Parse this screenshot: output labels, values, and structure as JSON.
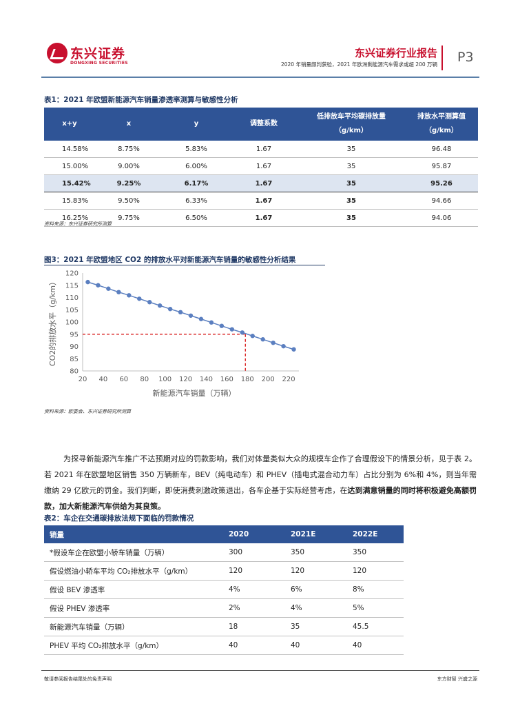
{
  "header": {
    "logo_cn": "东兴证券",
    "logo_en": "DONGXING SECURITIES",
    "title": "东兴证券行业报告",
    "subtitle": "2020 年销量颇判获验，2021 年欧洲剩能源汽车需求或超 200 万辆",
    "page": "P3"
  },
  "table1": {
    "caption": "表1：2021 年欧盟新能源汽车销量渗透率测算与敏感性分析",
    "headers": [
      "x+y",
      "x",
      "y",
      "调整系数",
      "低排放车平均碳排放量\n（g/km）",
      "排放水平测算值\n（g/km）"
    ],
    "rows": [
      [
        "14.58%",
        "8.75%",
        "5.83%",
        "1.67",
        "35",
        "96.48"
      ],
      [
        "15.00%",
        "9.00%",
        "6.00%",
        "1.67",
        "35",
        "95.87"
      ],
      [
        "15.42%",
        "9.25%",
        "6.17%",
        "1.67",
        "35",
        "95.26"
      ],
      [
        "15.83%",
        "9.50%",
        "6.33%",
        "1.67",
        "35",
        "94.66"
      ],
      [
        "16.25%",
        "9.75%",
        "6.50%",
        "1.67",
        "35",
        "94.06"
      ]
    ],
    "source": "资料来源：东兴证券研究所测算"
  },
  "figure3": {
    "caption": "图3：2021 年欧盟地区 CO2 的排放水平对新能源汽车销量的敏感性分析结果",
    "source": "资料来源：欧委会、东兴证券研究所测算"
  },
  "chart_data": {
    "type": "line",
    "title": "",
    "xlabel": "新能源汽车销量（万辆）",
    "ylabel": "CO2的排放水平（g/km）",
    "xlim": [
      20,
      230
    ],
    "ylim": [
      80,
      120
    ],
    "xticks": [
      20,
      40,
      60,
      80,
      100,
      120,
      140,
      160,
      180,
      200,
      220
    ],
    "yticks": [
      80,
      85,
      90,
      95,
      100,
      105,
      110,
      115,
      120
    ],
    "series": [
      {
        "x": [
          25,
          35,
          45,
          55,
          65,
          75,
          85,
          95,
          105,
          115,
          125,
          135,
          145,
          155,
          165,
          175,
          185,
          195,
          205,
          215,
          225
        ],
        "y": [
          116.3,
          115.0,
          113.6,
          112.2,
          110.9,
          109.5,
          108.1,
          106.7,
          105.3,
          104.0,
          102.6,
          101.2,
          99.8,
          98.4,
          97.0,
          95.7,
          94.3,
          92.9,
          91.5,
          90.1,
          88.8
        ]
      }
    ],
    "reference": {
      "x": 178,
      "y": 95
    },
    "colors": {
      "line": "#5b7fc0",
      "reference": "#d40000"
    },
    "grid": false
  },
  "paragraph": {
    "text_plain": "为探寻新能源汽车推广不达预期对应的罚款影响，我们对体量类似大众的规模车企作了合理假设下的情景分析，见于表 2。若 2021 年在欧盟地区销售 350 万辆新车，BEV（纯电动车）和 PHEV（插电式混合动力车）占比分别为 6%和 4%，则当年需缴纳 29 亿欧元的罚金。我们判断，即使消费刺激政策退出，各车企基于实际经营考虑，在",
    "text_bold": "达到满意销量的同时将积极避免高额罚款，加大新能源汽车供给为其良策。"
  },
  "table2": {
    "caption": "表2：车企在交通碳排放法规下面临的罚款情况",
    "headers": [
      "销量",
      "2020",
      "2021E",
      "2022E"
    ],
    "rows": [
      [
        "*假设车企在欧盟小轿车销量（万辆）",
        "300",
        "350",
        "350"
      ],
      [
        "假设燃油小轿车平均 CO₂排放水平（g/km）",
        "120",
        "120",
        "120"
      ],
      [
        "假设 BEV 渗透率",
        "4%",
        "6%",
        "8%"
      ],
      [
        "假设 PHEV 渗透率",
        "2%",
        "4%",
        "5%"
      ],
      [
        "新能源汽车销量（万辆）",
        "18",
        "35",
        "45.5"
      ],
      [
        "PHEV 平均 CO₂排放水平（g/km）",
        "40",
        "40",
        "40"
      ]
    ]
  },
  "footer": {
    "left": "敬请参阅报告结尾处的免责声明",
    "right": "东方财智  兴盛之源"
  }
}
